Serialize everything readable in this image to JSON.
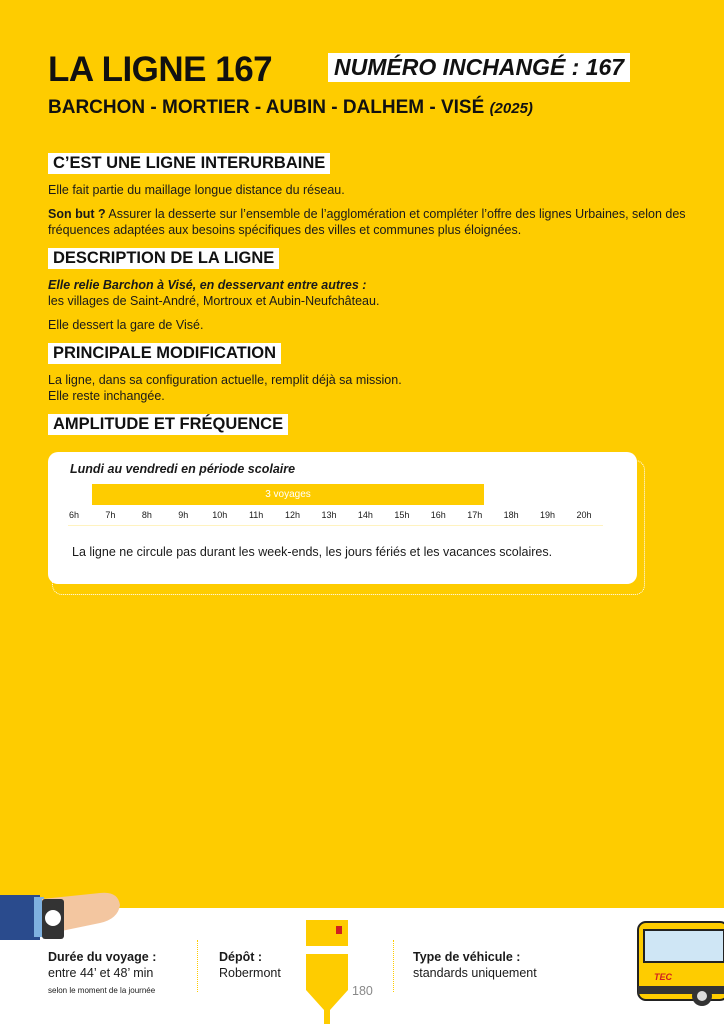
{
  "header": {
    "title": "LA LIGNE 167",
    "badge": "NUMÉRO INCHANGÉ : 167",
    "route": "BARCHON - MORTIER - AUBIN - DALHEM - VISÉ",
    "year": "(2025)"
  },
  "sections": {
    "type": {
      "heading": "C’EST UNE LIGNE INTERURBAINE",
      "p1": "Elle fait partie du maillage longue distance du réseau.",
      "p2_bold": "Son but ?",
      "p2": " Assurer la desserte sur l’ensemble de l’agglomération et compléter l’offre des lignes Urbaines, selon des fréquences adaptées aux besoins spécifiques des villes et communes plus éloignées."
    },
    "description": {
      "heading": "DESCRIPTION DE LA LIGNE",
      "lead": "Elle relie Barchon à Visé, en desservant entre autres :",
      "p1": "les villages de Saint-André, Mortroux et Aubin-Neufchâteau.",
      "p2": "Elle dessert la gare de Visé."
    },
    "modification": {
      "heading": "PRINCIPALE MODIFICATION",
      "p1": "La ligne, dans sa configuration actuelle, remplit déjà sa mission.",
      "p2": "Elle reste inchangée."
    },
    "amplitude": {
      "heading": "AMPLITUDE ET FRÉQUENCE"
    }
  },
  "chart_data": {
    "type": "bar",
    "title": "Lundi au vendredi en période scolaire",
    "x_ticks": [
      "6h",
      "7h",
      "8h",
      "9h",
      "10h",
      "11h",
      "12h",
      "13h",
      "14h",
      "15h",
      "16h",
      "17h",
      "18h",
      "19h",
      "20h"
    ],
    "xlim": [
      6,
      20
    ],
    "bars": [
      {
        "start": 6.5,
        "end": 17.25,
        "label": "3 voyages"
      }
    ],
    "bar_color": "#fecc00",
    "note": "La ligne ne circule pas durant les week-ends, les jours fériés et les vacances scolaires."
  },
  "footer": {
    "duration_label": "Durée du voyage :",
    "duration_value": "entre 44’ et 48’ min",
    "duration_note": "selon le moment de la journée",
    "depot_label": "Dépôt :",
    "depot_value": "Robermont",
    "vehicle_label": "Type de véhicule :",
    "vehicle_value": "standards uniquement",
    "page_number": "180",
    "bus_logo": "TEC"
  }
}
